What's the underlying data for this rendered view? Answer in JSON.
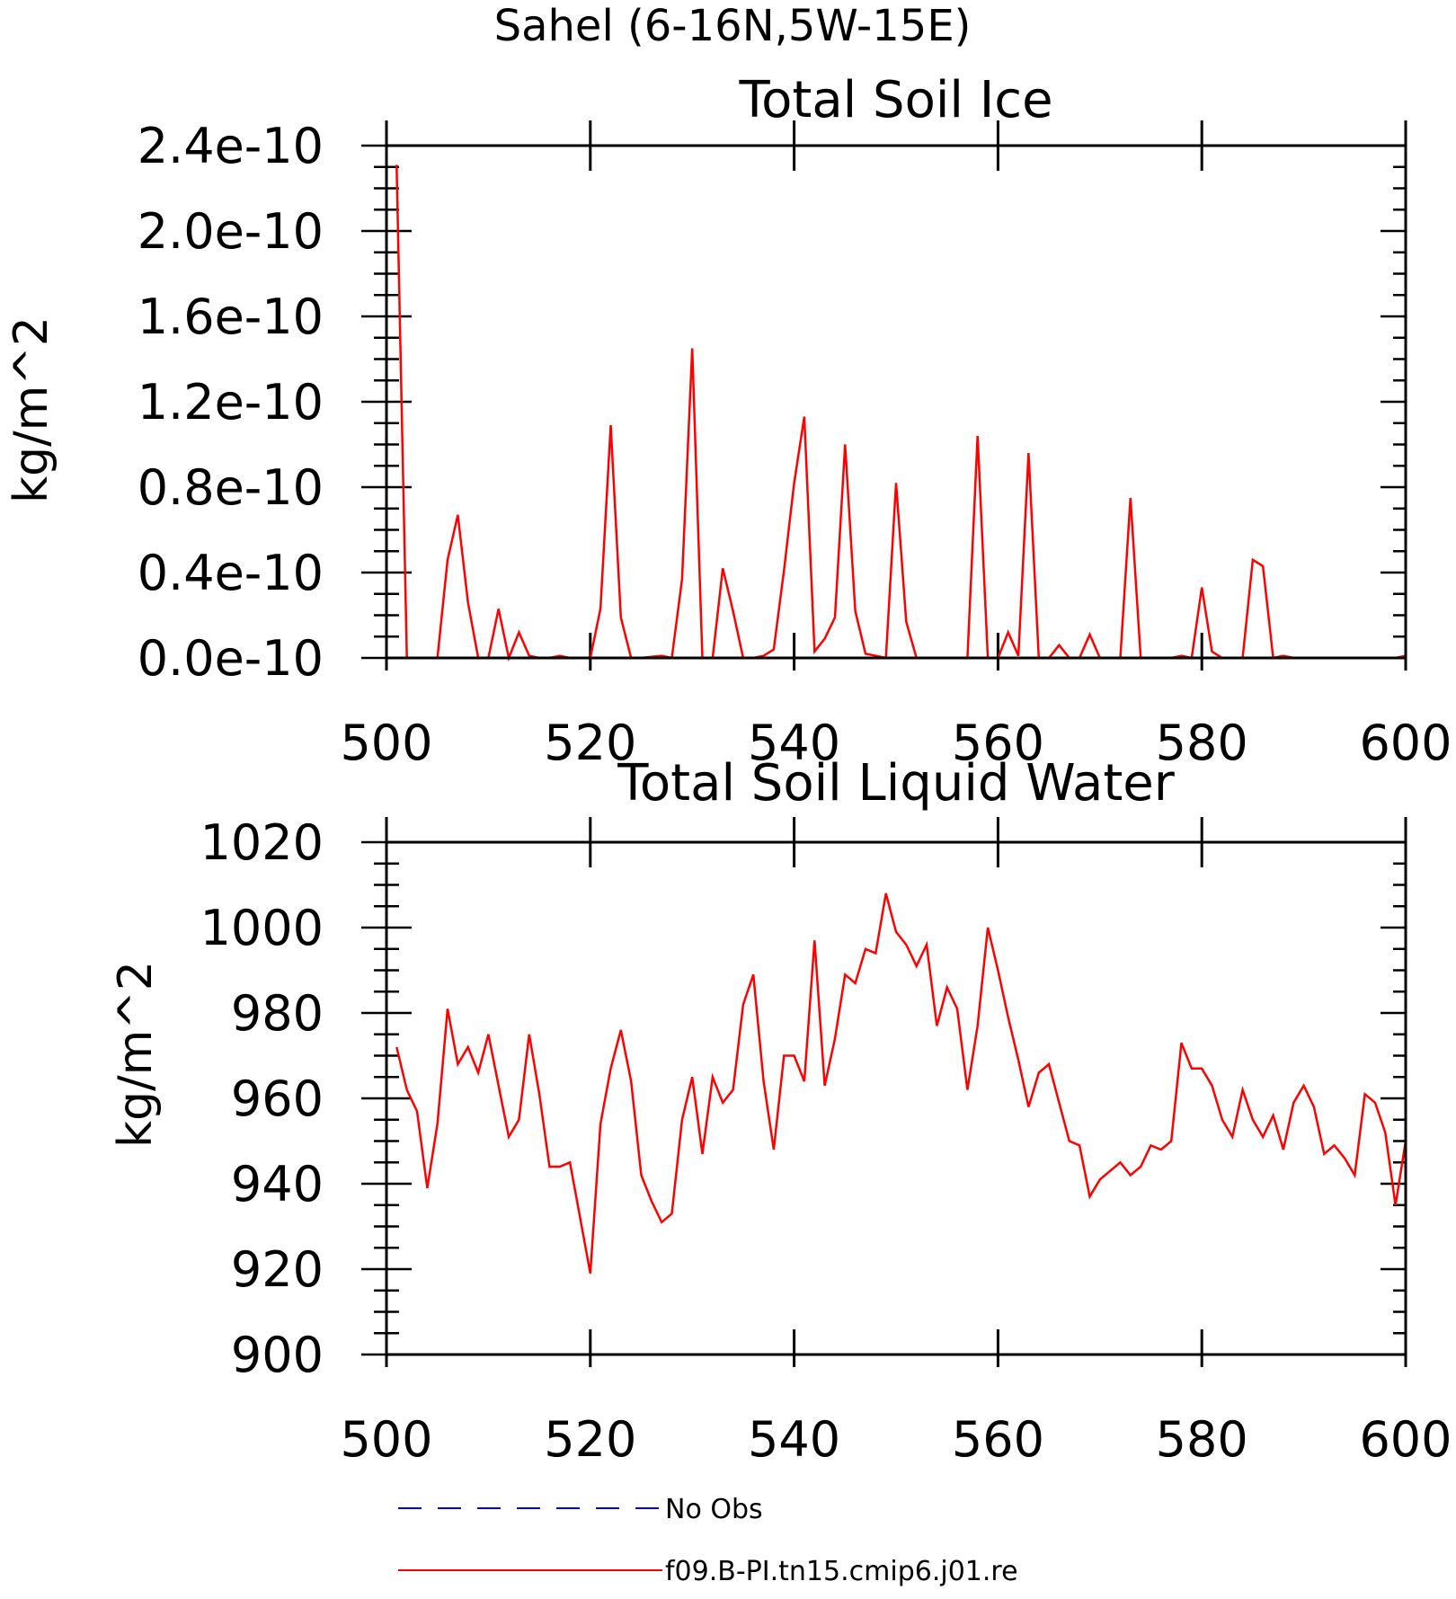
{
  "title": "Sahel (6-16N,5W-15E)",
  "legend": [
    {
      "label": "No Obs",
      "color": "#0000ff",
      "dash": true
    },
    {
      "label": "f09.B-PI.tn15.cmip6.j01.re",
      "color": "#ff0000",
      "dash": false
    }
  ],
  "chart_data": [
    {
      "type": "line",
      "title": "Total Soil Ice",
      "xlabel": "",
      "ylabel": "kg/m^2",
      "xlim": [
        500,
        600
      ],
      "ylim": [
        0,
        2.4e-10
      ],
      "xticks": [
        500,
        520,
        540,
        560,
        580,
        600
      ],
      "xtick_labels": [
        "500",
        "520",
        "540",
        "560",
        "580",
        "600"
      ],
      "yticks": [
        0,
        4e-11,
        8e-11,
        1.2e-10,
        1.6e-10,
        2e-10,
        2.4e-10
      ],
      "ytick_labels": [
        "0.0e-10",
        "0.4e-10",
        "0.8e-10",
        "1.2e-10",
        "1.6e-10",
        "2.0e-10",
        "2.4e-10"
      ],
      "scale": 1e-10,
      "x_start": 501,
      "color": "#ff0000",
      "values_scaled": [
        2.31,
        0,
        0,
        0,
        0,
        0.46,
        0.67,
        0.26,
        0,
        0,
        0.23,
        0,
        0.12,
        0.01,
        0,
        0,
        0.01,
        0,
        0,
        0,
        0.23,
        1.09,
        0.19,
        0,
        0,
        0.005,
        0.01,
        0,
        0.37,
        1.45,
        0,
        0,
        0.42,
        0.22,
        0,
        0,
        0.01,
        0.04,
        0.41,
        0.82,
        1.13,
        0.03,
        0.09,
        0.19,
        1.0,
        0.22,
        0.02,
        0.01,
        0,
        0.82,
        0.17,
        0,
        0,
        0,
        0,
        0,
        0,
        1.04,
        0,
        0,
        0.12,
        0.01,
        0.96,
        0,
        0,
        0.06,
        0,
        0,
        0.11,
        0,
        0,
        0,
        0.75,
        0,
        0,
        0,
        0,
        0.01,
        0,
        0.33,
        0.03,
        0,
        0,
        0,
        0.46,
        0.43,
        0,
        0.01,
        0,
        0,
        0,
        0,
        0,
        0,
        0,
        0,
        0,
        0,
        0,
        0.01
      ]
    },
    {
      "type": "line",
      "title": "Total Soil Liquid Water",
      "xlabel": "",
      "ylabel": "kg/m^2",
      "xlim": [
        500,
        600
      ],
      "ylim": [
        900,
        1020
      ],
      "xticks": [
        500,
        520,
        540,
        560,
        580,
        600
      ],
      "xtick_labels": [
        "500",
        "520",
        "540",
        "560",
        "580",
        "600"
      ],
      "yticks": [
        900,
        920,
        940,
        960,
        980,
        1000,
        1020
      ],
      "ytick_labels": [
        "900",
        "920",
        "940",
        "960",
        "980",
        "1000",
        "1020"
      ],
      "x_start": 501,
      "color": "#ff0000",
      "values": [
        972,
        962,
        957,
        939,
        954,
        981,
        968,
        972,
        966,
        975,
        963,
        951,
        955,
        975,
        961,
        944,
        944,
        945,
        932,
        919,
        954,
        967,
        976,
        964,
        942,
        936,
        931,
        933,
        955,
        965,
        947,
        965,
        959,
        962,
        982,
        989,
        964,
        948,
        970,
        970,
        964,
        997,
        963,
        974,
        989,
        987,
        995,
        994,
        1008,
        999,
        996,
        991,
        996,
        977,
        986,
        981,
        962,
        977,
        1000,
        990,
        979,
        969,
        958,
        966,
        968,
        959,
        950,
        949,
        937,
        941,
        943,
        945,
        942,
        944,
        949,
        948,
        950,
        973,
        967,
        967,
        963,
        955,
        951,
        962,
        955,
        951,
        956,
        948,
        959,
        963,
        958,
        947,
        949,
        946,
        942,
        961,
        959,
        952,
        935,
        950
      ]
    }
  ]
}
